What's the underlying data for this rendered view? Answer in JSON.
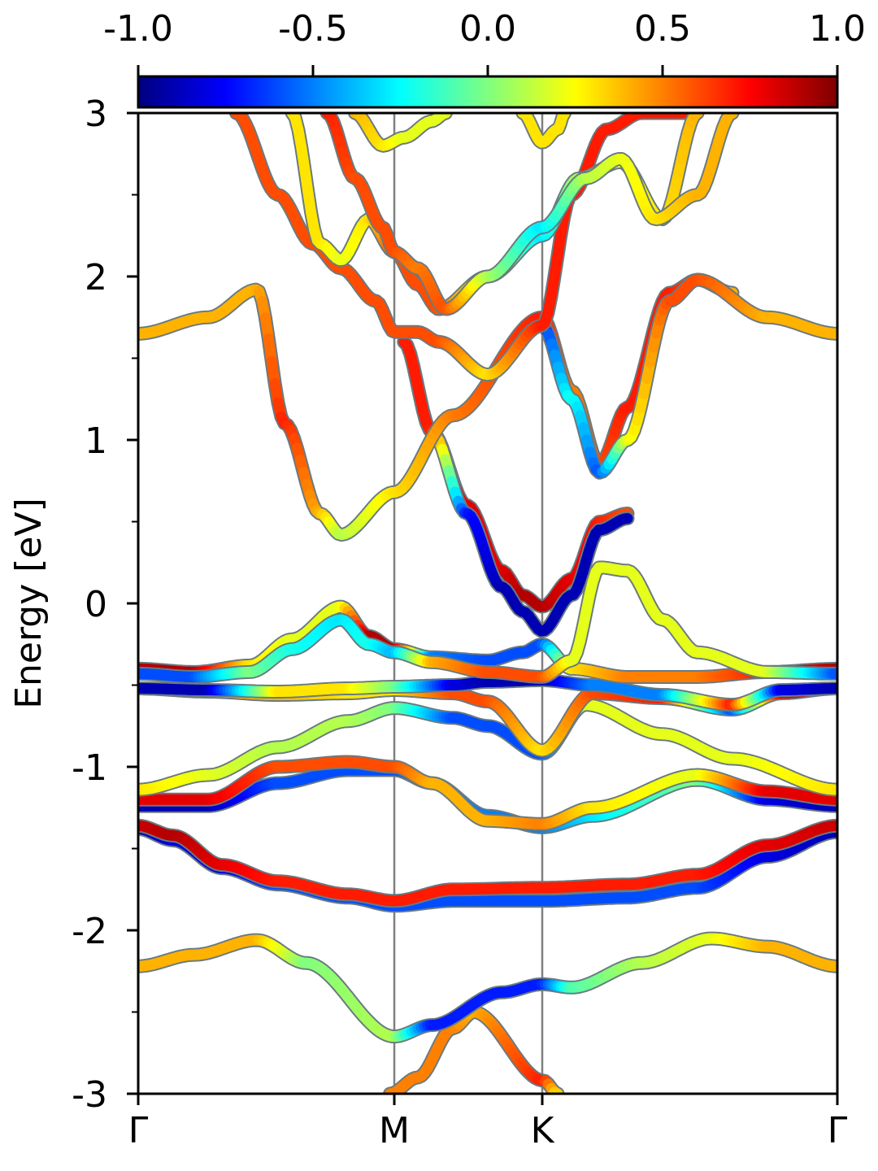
{
  "chart_data": {
    "type": "line",
    "title": "",
    "ylabel": "Energy [eV]",
    "xlabel": "",
    "ylim": [
      -3,
      3
    ],
    "yticks": [
      -3,
      -2,
      -1,
      0,
      1,
      2,
      3
    ],
    "ytick_labels": [
      "-3",
      "-2",
      "-1",
      "0",
      "1",
      "2",
      "3"
    ],
    "x_kpoints": [
      {
        "label": "Γ",
        "x": 0.0
      },
      {
        "label": "M",
        "x": 0.3663
      },
      {
        "label": "K",
        "x": 0.5779
      },
      {
        "label": "Γ",
        "x": 1.0
      }
    ],
    "colorbar": {
      "colormap": "jet",
      "min": -1.0,
      "max": 1.0,
      "ticks": [
        -1.0,
        -0.5,
        0.0,
        0.5,
        1.0
      ],
      "tick_labels": [
        "-1.0",
        "-0.5",
        "0.0",
        "0.5",
        "1.0"
      ],
      "placement": "top"
    },
    "grid": false,
    "bands": [
      {
        "name": "",
        "x": [
          0.36,
          0.4,
          0.45,
          0.48,
          0.58,
          0.6
        ],
        "y": [
          -3.0,
          -2.9,
          -2.6,
          -2.5,
          -2.92,
          -3.0
        ],
        "c": [
          0.5,
          0.5,
          0.5,
          0.4,
          0.7,
          0.3
        ]
      },
      {
        "name": "",
        "x": [
          0,
          0.08,
          0.17,
          0.24,
          0.3663,
          0.42,
          0.52,
          0.5779,
          0.62,
          0.72,
          0.82,
          0.9,
          1.0
        ],
        "y": [
          -2.22,
          -2.15,
          -2.06,
          -2.2,
          -2.65,
          -2.58,
          -2.38,
          -2.33,
          -2.35,
          -2.2,
          -2.05,
          -2.1,
          -2.22
        ],
        "c": [
          0.4,
          0.4,
          0.4,
          0.0,
          0.1,
          -0.7,
          -0.7,
          -0.7,
          -0.1,
          0.1,
          0.2,
          0.4,
          0.4
        ]
      },
      {
        "name": "",
        "x": [
          0,
          0.05,
          0.12,
          0.2,
          0.3,
          0.3663,
          0.45,
          0.5779,
          0.7,
          0.8,
          0.9,
          1.0
        ],
        "y": [
          -1.38,
          -1.45,
          -1.62,
          -1.72,
          -1.8,
          -1.85,
          -1.82,
          -1.82,
          -1.8,
          -1.74,
          -1.55,
          -1.4
        ],
        "c": [
          -0.9,
          -0.8,
          -0.8,
          -0.6,
          -0.6,
          -0.6,
          -0.6,
          -0.6,
          -0.6,
          -0.6,
          -0.8,
          -0.9
        ]
      },
      {
        "name": "",
        "x": [
          0,
          0.05,
          0.12,
          0.2,
          0.3,
          0.3663,
          0.45,
          0.5779,
          0.7,
          0.8,
          0.9,
          1.0
        ],
        "y": [
          -1.36,
          -1.42,
          -1.6,
          -1.7,
          -1.78,
          -1.82,
          -1.75,
          -1.74,
          -1.72,
          -1.66,
          -1.48,
          -1.36
        ],
        "c": [
          0.85,
          0.9,
          0.8,
          0.7,
          0.7,
          0.7,
          0.7,
          0.7,
          0.7,
          0.7,
          0.8,
          0.85
        ]
      },
      {
        "name": "",
        "x": [
          0,
          0.1,
          0.2,
          0.3,
          0.3663,
          0.42,
          0.5,
          0.5779,
          0.65,
          0.8,
          0.9,
          1.0
        ],
        "y": [
          -1.24,
          -1.24,
          -1.1,
          -1.02,
          -1.02,
          -1.1,
          -1.3,
          -1.37,
          -1.3,
          -1.08,
          -1.2,
          -1.24
        ],
        "c": [
          -0.9,
          -0.9,
          -0.6,
          -0.6,
          -0.6,
          -0.5,
          -0.5,
          -0.5,
          -0.3,
          0.0,
          -0.8,
          -0.9
        ]
      },
      {
        "name": "",
        "x": [
          0,
          0.1,
          0.2,
          0.3,
          0.3663,
          0.42,
          0.5,
          0.5779,
          0.65,
          0.8,
          0.9,
          1.0
        ],
        "y": [
          -1.2,
          -1.2,
          -1.0,
          -0.97,
          -1.0,
          -1.1,
          -1.33,
          -1.35,
          -1.25,
          -1.05,
          -1.15,
          -1.2
        ],
        "c": [
          0.8,
          0.8,
          0.6,
          0.6,
          0.6,
          0.4,
          0.4,
          0.5,
          0.3,
          0.2,
          0.8,
          0.8
        ]
      },
      {
        "name": "",
        "x": [
          0,
          0.1,
          0.2,
          0.3,
          0.3663,
          0.45,
          0.5,
          0.5779,
          0.64,
          0.75,
          0.85,
          1.0
        ],
        "y": [
          -1.14,
          -1.05,
          -0.88,
          -0.72,
          -0.64,
          -0.7,
          -0.75,
          -0.92,
          -0.62,
          -0.8,
          -0.95,
          -1.14
        ],
        "c": [
          0.3,
          0.2,
          0.1,
          0.1,
          0.0,
          -0.6,
          -0.6,
          -0.6,
          0.2,
          0.2,
          0.2,
          0.3
        ]
      },
      {
        "name": "",
        "x": [
          0,
          0.1,
          0.2,
          0.3,
          0.3663,
          0.45,
          0.5,
          0.5779,
          0.65,
          0.75,
          0.85,
          0.92,
          1.0
        ],
        "y": [
          -0.52,
          -0.54,
          -0.56,
          -0.55,
          -0.53,
          -0.55,
          -0.6,
          -0.9,
          -0.55,
          -0.58,
          -0.65,
          -0.55,
          -0.52
        ],
        "c": [
          0.9,
          0.4,
          0.4,
          0.3,
          0.3,
          0.6,
          0.6,
          0.3,
          0.6,
          0.7,
          -0.6,
          0.8,
          0.9
        ]
      },
      {
        "name": "",
        "x": [
          0,
          0.1,
          0.2,
          0.3,
          0.3663,
          0.45,
          0.5,
          0.5779,
          0.65,
          0.75,
          0.85,
          0.92,
          1.0
        ],
        "y": [
          -0.52,
          -0.53,
          -0.54,
          -0.52,
          -0.51,
          -0.5,
          -0.48,
          -0.47,
          -0.5,
          -0.56,
          -0.62,
          -0.53,
          -0.52
        ],
        "c": [
          -0.9,
          -0.9,
          0.3,
          0.3,
          0.0,
          -0.8,
          -0.9,
          -0.9,
          -0.5,
          -0.5,
          0.7,
          -0.8,
          -0.9
        ]
      },
      {
        "name": "",
        "x": [
          0,
          0.08,
          0.16,
          0.22,
          0.29,
          0.33,
          0.3663,
          0.42,
          0.5,
          0.55,
          0.5779,
          0.62,
          0.7,
          0.8,
          0.9,
          1.0
        ],
        "y": [
          -0.4,
          -0.42,
          -0.38,
          -0.22,
          -0.02,
          -0.2,
          -0.28,
          -0.33,
          -0.35,
          -0.3,
          -0.25,
          -0.4,
          -0.45,
          -0.45,
          -0.42,
          -0.4
        ],
        "c": [
          0.9,
          0.9,
          0.3,
          0.2,
          0.2,
          0.9,
          0.9,
          -0.5,
          -0.6,
          -0.6,
          -0.6,
          0.3,
          0.5,
          0.5,
          0.7,
          0.9
        ]
      },
      {
        "name": "",
        "x": [
          0,
          0.08,
          0.16,
          0.22,
          0.29,
          0.33,
          0.3663,
          0.42,
          0.5,
          0.5779,
          0.62,
          0.66,
          0.7,
          0.75,
          0.8,
          0.9,
          1.0
        ],
        "y": [
          -0.43,
          -0.45,
          -0.42,
          -0.28,
          -0.1,
          -0.25,
          -0.3,
          -0.36,
          -0.42,
          -0.45,
          -0.35,
          0.22,
          0.2,
          -0.1,
          -0.3,
          -0.42,
          -0.43
        ],
        "c": [
          -0.6,
          -0.6,
          0.0,
          -0.2,
          -0.3,
          -0.2,
          -0.4,
          0.4,
          0.6,
          0.6,
          0.2,
          0.2,
          0.2,
          0.2,
          0.2,
          0.2,
          -0.6
        ]
      },
      {
        "name": "",
        "x": [
          0.38,
          0.42,
          0.47,
          0.52,
          0.55,
          0.5779,
          0.62,
          0.66,
          0.7
        ],
        "y": [
          1.6,
          1.05,
          0.6,
          0.2,
          0.05,
          -0.02,
          0.15,
          0.5,
          0.55
        ],
        "c": [
          0.7,
          0.7,
          0.8,
          0.8,
          0.9,
          0.9,
          0.8,
          0.7,
          0.6
        ]
      },
      {
        "name": "",
        "x": [
          0.38,
          0.42,
          0.47,
          0.52,
          0.55,
          0.5779,
          0.62,
          0.66,
          0.7
        ],
        "y": [
          1.6,
          1.05,
          0.55,
          0.1,
          -0.05,
          -0.17,
          0.05,
          0.45,
          0.52
        ],
        "c": [
          0.7,
          0.7,
          -0.7,
          -0.9,
          -0.9,
          -0.9,
          -0.9,
          -0.9,
          -0.9
        ]
      },
      {
        "name": "",
        "x": [
          0,
          0.1,
          0.17,
          0.21,
          0.26,
          0.29,
          0.3663,
          0.45,
          0.5779,
          0.62,
          0.66,
          0.7,
          0.76,
          0.8,
          0.85
        ],
        "y": [
          1.65,
          1.75,
          1.92,
          1.1,
          0.55,
          0.42,
          0.68,
          1.15,
          1.75,
          1.3,
          0.85,
          1.2,
          1.9,
          1.98,
          1.9
        ],
        "c": [
          0.4,
          0.4,
          0.4,
          0.7,
          0.4,
          0.1,
          0.3,
          0.5,
          0.7,
          0.5,
          0.6,
          0.7,
          0.7,
          0.6,
          0.4
        ]
      },
      {
        "name": "",
        "x": [
          0.5779,
          0.62,
          0.66,
          0.7,
          0.76,
          0.8,
          0.9,
          1.0
        ],
        "y": [
          1.7,
          1.25,
          0.8,
          1.0,
          1.85,
          1.98,
          1.75,
          1.65
        ],
        "c": [
          -0.7,
          -0.2,
          -0.6,
          0.2,
          0.6,
          0.6,
          0.4,
          0.4
        ]
      },
      {
        "name": "",
        "x": [
          0.14,
          0.2,
          0.25,
          0.29,
          0.34,
          0.3663,
          0.4,
          0.43,
          0.5,
          0.5779,
          0.62,
          0.67,
          0.72,
          0.76,
          0.8
        ],
        "y": [
          3.0,
          2.5,
          2.2,
          2.05,
          1.85,
          1.66,
          1.66,
          1.6,
          1.4,
          1.7,
          2.5,
          2.9,
          3.0,
          3.0,
          3.0
        ],
        "c": [
          0.6,
          0.6,
          0.6,
          0.6,
          0.6,
          0.6,
          0.6,
          0.6,
          0.3,
          0.7,
          0.7,
          0.7,
          0.7,
          0.7,
          0.7
        ]
      },
      {
        "name": "",
        "x": [
          0.22,
          0.26,
          0.29,
          0.33,
          0.3663,
          0.4,
          0.43,
          0.5,
          0.5779,
          0.63,
          0.69,
          0.75,
          0.8
        ],
        "y": [
          3.0,
          2.2,
          2.1,
          2.35,
          2.15,
          1.95,
          1.8,
          2.0,
          2.25,
          2.6,
          2.7,
          2.35,
          3.0
        ],
        "c": [
          0.3,
          0.3,
          0.2,
          0.3,
          0.6,
          0.6,
          0.6,
          0.1,
          -0.3,
          0.1,
          0.2,
          0.3,
          0.4
        ]
      },
      {
        "name": "",
        "x": [
          0.27,
          0.31,
          0.35,
          0.3663,
          0.4,
          0.44,
          0.5,
          0.5779,
          0.64,
          0.69,
          0.74,
          0.8,
          0.85
        ],
        "y": [
          3.0,
          2.6,
          2.3,
          2.15,
          2.05,
          1.8,
          2.0,
          2.3,
          2.6,
          2.72,
          2.35,
          2.5,
          3.0
        ],
        "c": [
          0.7,
          0.6,
          0.6,
          0.6,
          0.5,
          0.6,
          0.1,
          -0.3,
          0.1,
          0.2,
          0.3,
          0.4,
          0.4
        ]
      },
      {
        "name": "",
        "x": [
          0.31,
          0.35,
          0.38,
          0.42,
          0.44
        ],
        "y": [
          3.0,
          2.8,
          2.85,
          2.95,
          3.0
        ],
        "c": [
          0.4,
          0.3,
          0.2,
          0.2,
          0.2
        ]
      },
      {
        "name": "",
        "x": [
          0.55,
          0.5779,
          0.6,
          0.61
        ],
        "y": [
          3.0,
          2.82,
          2.9,
          3.0
        ],
        "c": [
          0.3,
          0.3,
          0.3,
          0.3
        ]
      }
    ]
  }
}
